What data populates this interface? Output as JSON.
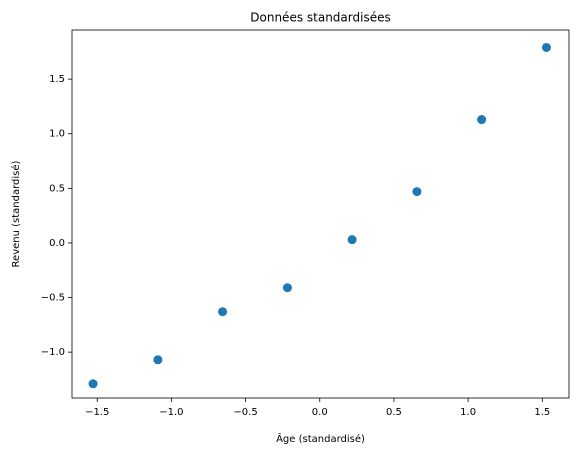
{
  "chart_data": {
    "type": "scatter",
    "title": "Données standardisées",
    "x_label": "Âge (standardisé)",
    "y_label": "Revenu (standardisé)",
    "series": [
      {
        "color": "#1f77b4",
        "x": [
          -1.528,
          -1.091,
          -0.655,
          -0.218,
          0.218,
          0.655,
          1.091,
          1.528
        ],
        "values": [
          -1.29,
          -1.07,
          -0.63,
          -0.41,
          0.03,
          0.47,
          1.13,
          1.79
        ]
      }
    ],
    "xlim": [
      -1.67,
      1.68
    ],
    "ylim": [
      -1.42,
      1.95
    ],
    "xticks": [
      {
        "value": -1.5,
        "label": "−1.5"
      },
      {
        "value": -1.0,
        "label": "−1.0"
      },
      {
        "value": -0.5,
        "label": "−0.5"
      },
      {
        "value": 0,
        "label": "0.0"
      },
      0.5,
      {
        "value": 1,
        "label": "1.0"
      },
      1.5
    ],
    "yticks": [
      {
        "value": -1.0,
        "label": "−1.0"
      },
      {
        "value": -0.5,
        "label": "−0.5"
      },
      {
        "value": 0,
        "label": "0.0"
      },
      0.5,
      {
        "value": 1,
        "label": "1.0"
      },
      1.5
    ],
    "grid": false
  }
}
